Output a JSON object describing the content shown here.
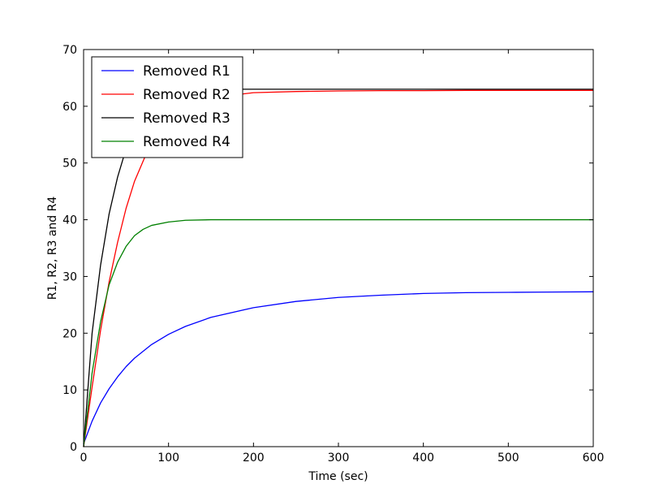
{
  "chart_data": {
    "type": "line",
    "title": "",
    "xlabel": "Time (sec)",
    "ylabel": "R1, R2, R3 and R4",
    "xlim": [
      0,
      600
    ],
    "ylim": [
      0,
      70
    ],
    "xticks": [
      0,
      100,
      200,
      300,
      400,
      500,
      600
    ],
    "yticks": [
      0,
      10,
      20,
      30,
      40,
      50,
      60,
      70
    ],
    "grid": false,
    "legend_position": "top-left",
    "series": [
      {
        "name": "Removed R1",
        "color": "#0000ff",
        "x": [
          0,
          10,
          20,
          30,
          40,
          50,
          60,
          80,
          100,
          120,
          150,
          200,
          250,
          300,
          350,
          400,
          450,
          500,
          550,
          600
        ],
        "y": [
          0.5,
          4.5,
          7.7,
          10.2,
          12.3,
          14.1,
          15.6,
          18.0,
          19.8,
          21.2,
          22.8,
          24.5,
          25.6,
          26.3,
          26.7,
          27.0,
          27.15,
          27.2,
          27.25,
          27.3
        ]
      },
      {
        "name": "Removed R2",
        "color": "#ff0000",
        "x": [
          0,
          10,
          20,
          30,
          40,
          50,
          60,
          80,
          100,
          120,
          150,
          200,
          250,
          300,
          350,
          400,
          450,
          500,
          550,
          600
        ],
        "y": [
          0,
          10.5,
          20.5,
          29.0,
          36.0,
          42.0,
          46.8,
          53.8,
          57.8,
          60.0,
          61.5,
          62.4,
          62.6,
          62.7,
          62.75,
          62.75,
          62.8,
          62.8,
          62.8,
          62.8
        ]
      },
      {
        "name": "Removed R3",
        "color": "#000000",
        "x": [
          0,
          10,
          20,
          30,
          40,
          50,
          60,
          70,
          80,
          100,
          120,
          150,
          200,
          300,
          400,
          500,
          600
        ],
        "y": [
          0,
          20.0,
          32.0,
          41.0,
          47.5,
          52.5,
          56.2,
          58.8,
          60.6,
          62.3,
          62.8,
          63.0,
          63.0,
          63.0,
          63.0,
          63.0,
          63.0
        ]
      },
      {
        "name": "Removed R4",
        "color": "#008000",
        "x": [
          0,
          10,
          20,
          30,
          40,
          50,
          60,
          70,
          80,
          100,
          120,
          150,
          200,
          300,
          400,
          500,
          600
        ],
        "y": [
          0,
          13.0,
          22.0,
          28.5,
          32.5,
          35.3,
          37.2,
          38.3,
          39.0,
          39.6,
          39.9,
          40.0,
          40.0,
          40.0,
          40.0,
          40.0,
          40.0
        ]
      }
    ]
  }
}
